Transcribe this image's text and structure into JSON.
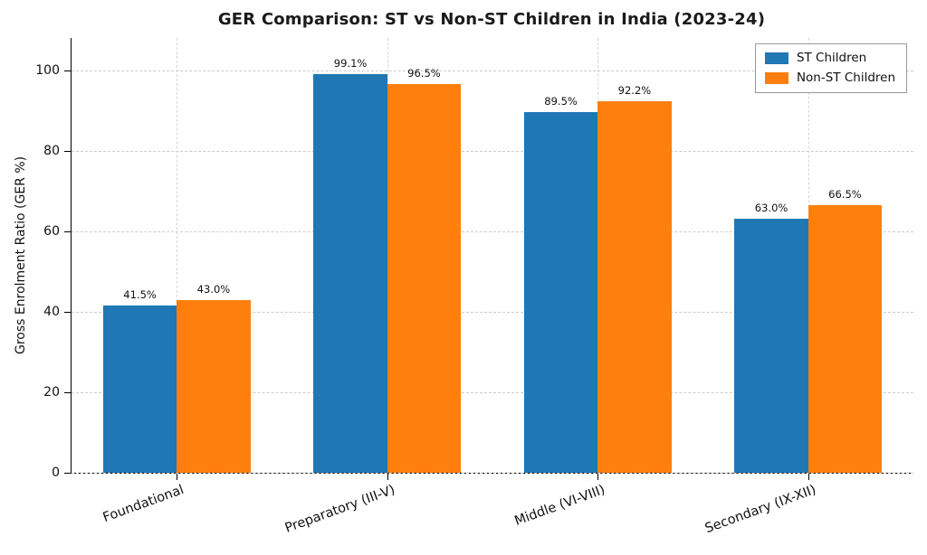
{
  "chart_data": {
    "type": "bar",
    "title": "GER Comparison: ST vs Non-ST Children in India (2023-24)",
    "ylabel": "Gross Enrolment Ratio (GER %)",
    "xlabel": "",
    "categories": [
      "Foundational",
      "Preparatory (III-V)",
      "Middle (VI-VIII)",
      "Secondary (IX-XII)"
    ],
    "series": [
      {
        "name": "ST Children",
        "color": "#1f77b4",
        "values": [
          41.5,
          99.1,
          89.5,
          63.0
        ],
        "labels": [
          "41.5%",
          "99.1%",
          "89.5%",
          "63.0%"
        ]
      },
      {
        "name": "Non-ST Children",
        "color": "#ff7f0e",
        "values": [
          43.0,
          96.5,
          92.2,
          66.5
        ],
        "labels": [
          "43.0%",
          "96.5%",
          "92.2%",
          "66.5%"
        ]
      }
    ],
    "ylim": [
      0,
      108
    ],
    "yticks": [
      0,
      20,
      40,
      60,
      80,
      100
    ],
    "grid": "dashed",
    "grid_color": "#cdcdcd",
    "axis_color": "#000000",
    "legend_position": "upper right",
    "legend_labels": [
      "ST Children",
      "Non-ST Children"
    ]
  }
}
